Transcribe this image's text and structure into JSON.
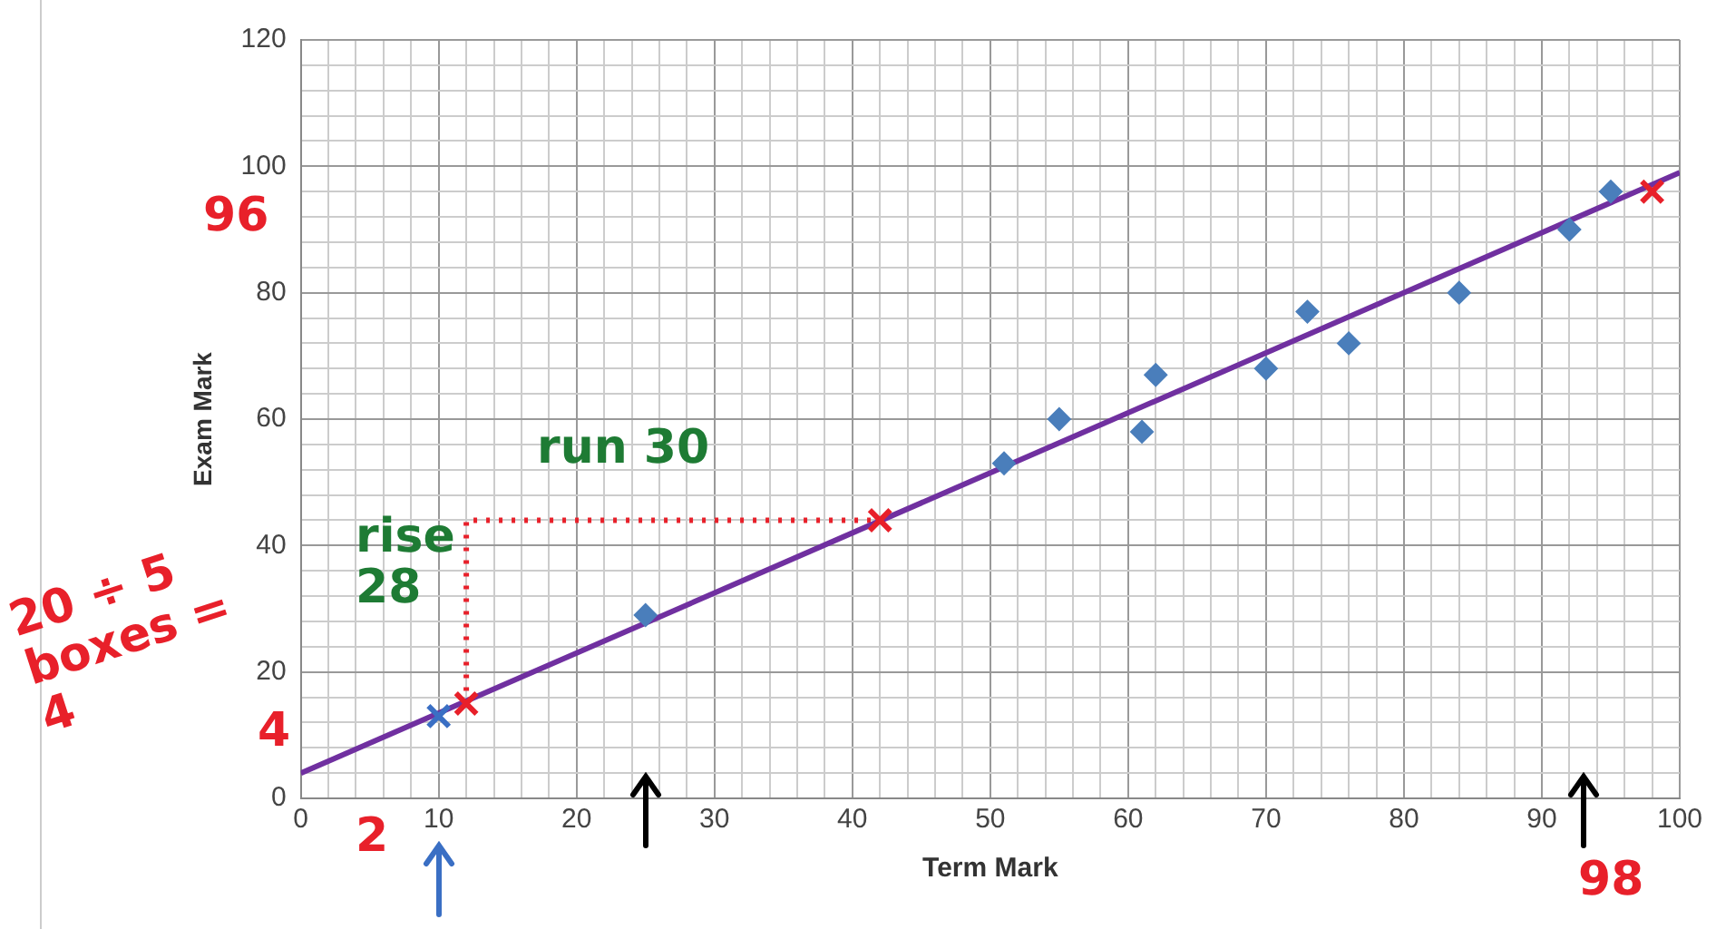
{
  "chart_data": {
    "type": "scatter",
    "xlabel": "Term Mark",
    "ylabel": "Exam Mark",
    "xlim": [
      0,
      100
    ],
    "ylim": [
      0,
      120
    ],
    "xticks": [
      0,
      {
        "value": 2,
        "label": null
      },
      {
        "value": 4,
        "label": null
      },
      {
        "value": 6,
        "label": null
      },
      {
        "value": 8,
        "label": null
      },
      10,
      {
        "value": 12,
        "label": null
      },
      {
        "value": 14,
        "label": null
      },
      {
        "value": 16,
        "label": null
      },
      {
        "value": 18,
        "label": null
      },
      20,
      {
        "value": 22,
        "label": null
      },
      {
        "value": 24,
        "label": null
      },
      {
        "value": 26,
        "label": null
      },
      {
        "value": 28,
        "label": null
      },
      30,
      {
        "value": 32,
        "label": null
      },
      {
        "value": 34,
        "label": null
      },
      {
        "value": 36,
        "label": null
      },
      {
        "value": 38,
        "label": null
      },
      40,
      {
        "value": 42,
        "label": null
      },
      {
        "value": 44,
        "label": null
      },
      {
        "value": 46,
        "label": null
      },
      {
        "value": 48,
        "label": null
      },
      50,
      {
        "value": 52,
        "label": null
      },
      {
        "value": 54,
        "label": null
      },
      {
        "value": 56,
        "label": null
      },
      {
        "value": 58,
        "label": null
      },
      60,
      {
        "value": 62,
        "label": null
      },
      {
        "value": 64,
        "label": null
      },
      {
        "value": 66,
        "label": null
      },
      {
        "value": 68,
        "label": null
      },
      70,
      {
        "value": 72,
        "label": null
      },
      {
        "value": 74,
        "label": null
      },
      {
        "value": 76,
        "label": null
      },
      {
        "value": 78,
        "label": null
      },
      80,
      {
        "value": 82,
        "label": null
      },
      {
        "value": 84,
        "label": null
      },
      {
        "value": 86,
        "label": null
      },
      {
        "value": 88,
        "label": null
      },
      90,
      {
        "value": 92,
        "label": null
      },
      {
        "value": 94,
        "label": null
      },
      {
        "value": 96,
        "label": null
      },
      {
        "value": 98,
        "label": null
      },
      100
    ],
    "yticks": [
      0,
      {
        "value": 4,
        "label": null
      },
      {
        "value": 8,
        "label": null
      },
      {
        "value": 12,
        "label": null
      },
      {
        "value": 16,
        "label": null
      },
      20,
      {
        "value": 24,
        "label": null
      },
      {
        "value": 28,
        "label": null
      },
      {
        "value": 32,
        "label": null
      },
      {
        "value": 36,
        "label": null
      },
      40,
      {
        "value": 44,
        "label": null
      },
      {
        "value": 48,
        "label": null
      },
      {
        "value": 52,
        "label": null
      },
      {
        "value": 56,
        "label": null
      },
      60,
      {
        "value": 64,
        "label": null
      },
      {
        "value": 68,
        "label": null
      },
      {
        "value": 72,
        "label": null
      },
      {
        "value": 76,
        "label": null
      },
      80,
      {
        "value": 84,
        "label": null
      },
      {
        "value": 88,
        "label": null
      },
      {
        "value": 92,
        "label": null
      },
      {
        "value": 96,
        "label": null
      },
      100,
      {
        "value": 104,
        "label": null
      },
      {
        "value": 108,
        "label": null
      },
      {
        "value": 112,
        "label": null
      },
      {
        "value": 116,
        "label": null
      },
      120
    ],
    "grid": true,
    "legend": false,
    "series": [
      {
        "type": "line",
        "color": "#7030a0",
        "x": [
          0,
          100
        ],
        "values": [
          4,
          99
        ],
        "marker": "none",
        "line_style": "solid"
      },
      {
        "type": "line",
        "color": "#e8202a",
        "x": [
          12,
          12,
          42
        ],
        "values": [
          15,
          44,
          44
        ],
        "marker": "none",
        "line_style": "dotted"
      },
      {
        "color": "#4a7ebb",
        "marker": "diamond",
        "x": [
          25,
          51,
          55,
          61,
          62,
          70,
          73,
          76,
          84,
          92,
          95
        ],
        "values": [
          29,
          53,
          60,
          58,
          67,
          68,
          77,
          72,
          80,
          90,
          96
        ]
      },
      {
        "color": "#e8202a",
        "marker": "cross",
        "x": [
          12,
          42,
          98
        ],
        "values": [
          15,
          44,
          96
        ]
      },
      {
        "color": "#3a6fc4",
        "marker": "cross",
        "x": [
          10
        ],
        "values": [
          13
        ]
      }
    ],
    "annotations": [
      "run 30",
      "rise 28",
      "96",
      "4",
      "2",
      "98",
      "20 ÷ 5 boxes = 4"
    ]
  }
}
